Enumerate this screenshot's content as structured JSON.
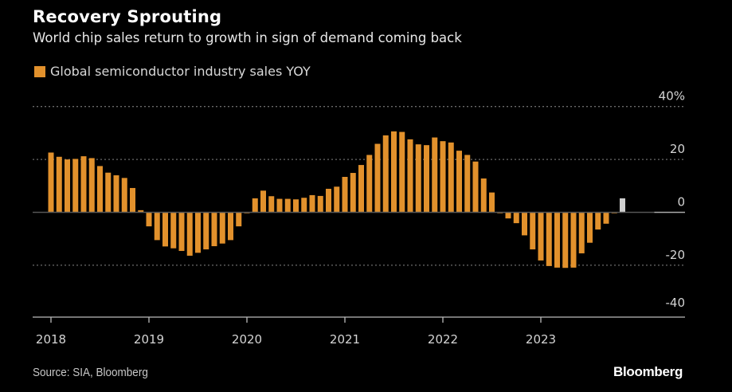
{
  "header": {
    "title": "Recovery Sprouting",
    "subtitle": "World chip sales return to growth in sign of demand coming back"
  },
  "legend": {
    "items": [
      {
        "label": "Global semiconductor industry sales YOY",
        "color": "#e2912c"
      }
    ]
  },
  "footer": {
    "source": "Source: SIA, Bloomberg",
    "brand": "Bloomberg"
  },
  "chart_data": {
    "type": "bar",
    "title": "Recovery Sprouting",
    "subtitle": "World chip sales return to growth in sign of demand coming back",
    "xlabel": "",
    "ylabel": "",
    "ylim": [
      -40,
      40
    ],
    "yticks": [
      40,
      20,
      0,
      -20,
      -40
    ],
    "ytick_labels": [
      "40%",
      "20",
      "0",
      "-20",
      "-40"
    ],
    "yaxis_position": "right",
    "grid": true,
    "legend_position": "top-left",
    "xtick_labels": [
      "2018",
      "2019",
      "2020",
      "2021",
      "2022",
      "2023"
    ],
    "xrange": [
      "2018-01",
      "2024-06"
    ],
    "colors": {
      "actual": "#e2912c",
      "latest": "#cfcfcf"
    },
    "series": [
      {
        "name": "Global semiconductor industry sales YOY",
        "unit": "%",
        "points": [
          {
            "x": "2018-01",
            "y": 22.6
          },
          {
            "x": "2018-02",
            "y": 21.0
          },
          {
            "x": "2018-03",
            "y": 20.0
          },
          {
            "x": "2018-04",
            "y": 20.2
          },
          {
            "x": "2018-05",
            "y": 21.2
          },
          {
            "x": "2018-06",
            "y": 20.5
          },
          {
            "x": "2018-07",
            "y": 17.5
          },
          {
            "x": "2018-08",
            "y": 15.0
          },
          {
            "x": "2018-09",
            "y": 14.0
          },
          {
            "x": "2018-10",
            "y": 13.0
          },
          {
            "x": "2018-11",
            "y": 9.2
          },
          {
            "x": "2018-12",
            "y": 0.8
          },
          {
            "x": "2019-01",
            "y": -5.3
          },
          {
            "x": "2019-02",
            "y": -10.5
          },
          {
            "x": "2019-03",
            "y": -12.9
          },
          {
            "x": "2019-04",
            "y": -13.6
          },
          {
            "x": "2019-05",
            "y": -14.6
          },
          {
            "x": "2019-06",
            "y": -16.4
          },
          {
            "x": "2019-07",
            "y": -15.3
          },
          {
            "x": "2019-08",
            "y": -14.0
          },
          {
            "x": "2019-09",
            "y": -12.8
          },
          {
            "x": "2019-10",
            "y": -11.8
          },
          {
            "x": "2019-11",
            "y": -10.5
          },
          {
            "x": "2019-12",
            "y": -5.3
          },
          {
            "x": "2020-01",
            "y": -0.3
          },
          {
            "x": "2020-02",
            "y": 5.3
          },
          {
            "x": "2020-03",
            "y": 8.2
          },
          {
            "x": "2020-04",
            "y": 6.1
          },
          {
            "x": "2020-05",
            "y": 5.1
          },
          {
            "x": "2020-06",
            "y": 5.1
          },
          {
            "x": "2020-07",
            "y": 4.9
          },
          {
            "x": "2020-08",
            "y": 5.5
          },
          {
            "x": "2020-09",
            "y": 6.5
          },
          {
            "x": "2020-10",
            "y": 6.2
          },
          {
            "x": "2020-11",
            "y": 8.9
          },
          {
            "x": "2020-12",
            "y": 9.7
          },
          {
            "x": "2021-01",
            "y": 13.4
          },
          {
            "x": "2021-02",
            "y": 14.9
          },
          {
            "x": "2021-03",
            "y": 17.9
          },
          {
            "x": "2021-04",
            "y": 21.7
          },
          {
            "x": "2021-05",
            "y": 25.9
          },
          {
            "x": "2021-06",
            "y": 29.1
          },
          {
            "x": "2021-07",
            "y": 30.6
          },
          {
            "x": "2021-08",
            "y": 30.4
          },
          {
            "x": "2021-09",
            "y": 27.6
          },
          {
            "x": "2021-10",
            "y": 25.7
          },
          {
            "x": "2021-11",
            "y": 25.4
          },
          {
            "x": "2021-12",
            "y": 28.3
          },
          {
            "x": "2022-01",
            "y": 26.9
          },
          {
            "x": "2022-02",
            "y": 26.4
          },
          {
            "x": "2022-03",
            "y": 23.3
          },
          {
            "x": "2022-04",
            "y": 21.7
          },
          {
            "x": "2022-05",
            "y": 19.2
          },
          {
            "x": "2022-06",
            "y": 12.8
          },
          {
            "x": "2022-07",
            "y": 7.5
          },
          {
            "x": "2022-08",
            "y": -0.3
          },
          {
            "x": "2022-09",
            "y": -2.3
          },
          {
            "x": "2022-10",
            "y": -4.1
          },
          {
            "x": "2022-11",
            "y": -8.7
          },
          {
            "x": "2022-12",
            "y": -14.0
          },
          {
            "x": "2023-01",
            "y": -18.2
          },
          {
            "x": "2023-02",
            "y": -20.3
          },
          {
            "x": "2023-03",
            "y": -20.9
          },
          {
            "x": "2023-04",
            "y": -21.0
          },
          {
            "x": "2023-05",
            "y": -20.9
          },
          {
            "x": "2023-06",
            "y": -15.5
          },
          {
            "x": "2023-07",
            "y": -11.5
          },
          {
            "x": "2023-08",
            "y": -6.5
          },
          {
            "x": "2023-09",
            "y": -4.3
          },
          {
            "x": "2023-10",
            "y": -0.3
          },
          {
            "x": "2023-11",
            "y": 5.3,
            "highlight": "latest"
          }
        ]
      }
    ]
  }
}
